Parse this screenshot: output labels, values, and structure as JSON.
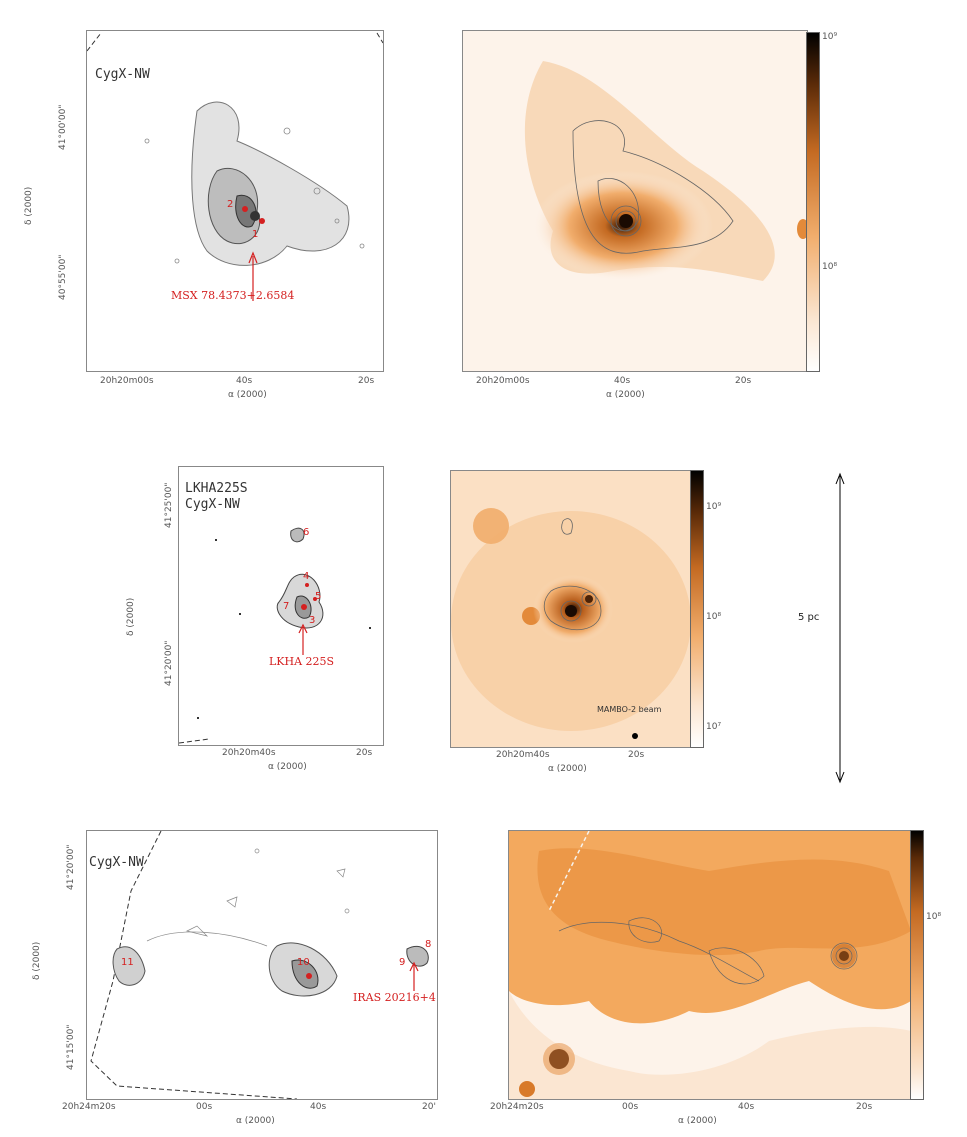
{
  "colors": {
    "map": "#f1ad6c",
    "peak": "#3a1a08",
    "bg_map": "#fdf3ea",
    "label": "#d42020"
  },
  "top_left": {
    "title": "CygX-NW",
    "dec_ticks": [
      "41°00'00\"",
      "40°55'00\""
    ],
    "ra_ticks": [
      "20h20m00s",
      "40s",
      "20s"
    ],
    "dec_label": "δ (2000)",
    "ra_label": "α (2000)",
    "source_label": "MSX 78.4373+2.6584",
    "nums": [
      "2",
      "1"
    ]
  },
  "top_right": {
    "ra_ticks": [
      "20h20m00s",
      "40s",
      "20s"
    ],
    "ra_label": "α (2000)",
    "cbar_ticks": [
      "10⁹",
      "10⁸"
    ]
  },
  "mid_left": {
    "title1": "LKHA225S",
    "title2": "CygX-NW",
    "dec_ticks": [
      "41°25'00\"",
      "41°20'00\""
    ],
    "ra_ticks": [
      "20h20m40s",
      "20s"
    ],
    "dec_label": "δ (2000)",
    "ra_label": "α (2000)",
    "source_label": "LKHA 225S",
    "nums": [
      "6",
      "4",
      "5",
      "7",
      "3"
    ]
  },
  "mid_right": {
    "ra_ticks": [
      "20h20m40s",
      "20s"
    ],
    "ra_label": "α (2000)",
    "beam_label": "MAMBO-2 beam",
    "cbar_ticks": [
      "10⁹",
      "10⁸",
      "10⁷"
    ]
  },
  "scale": {
    "label": "5 pc"
  },
  "bot_left": {
    "title": "CygX-NW",
    "dec_ticks": [
      "41°20'00\"",
      "41°15'00\""
    ],
    "ra_ticks": [
      "20h24m20s",
      "00s",
      "40s",
      "20'"
    ],
    "dec_label": "δ (2000)",
    "ra_label": "α (2000)",
    "source_label": "IRAS 20216+4",
    "nums": [
      "11",
      "10",
      "8",
      "9"
    ]
  },
  "bot_right": {
    "ra_ticks": [
      "20h24m20s",
      "00s",
      "40s",
      "20s"
    ],
    "ra_label": "α (2000)",
    "cbar_ticks": [
      "10⁸"
    ]
  }
}
